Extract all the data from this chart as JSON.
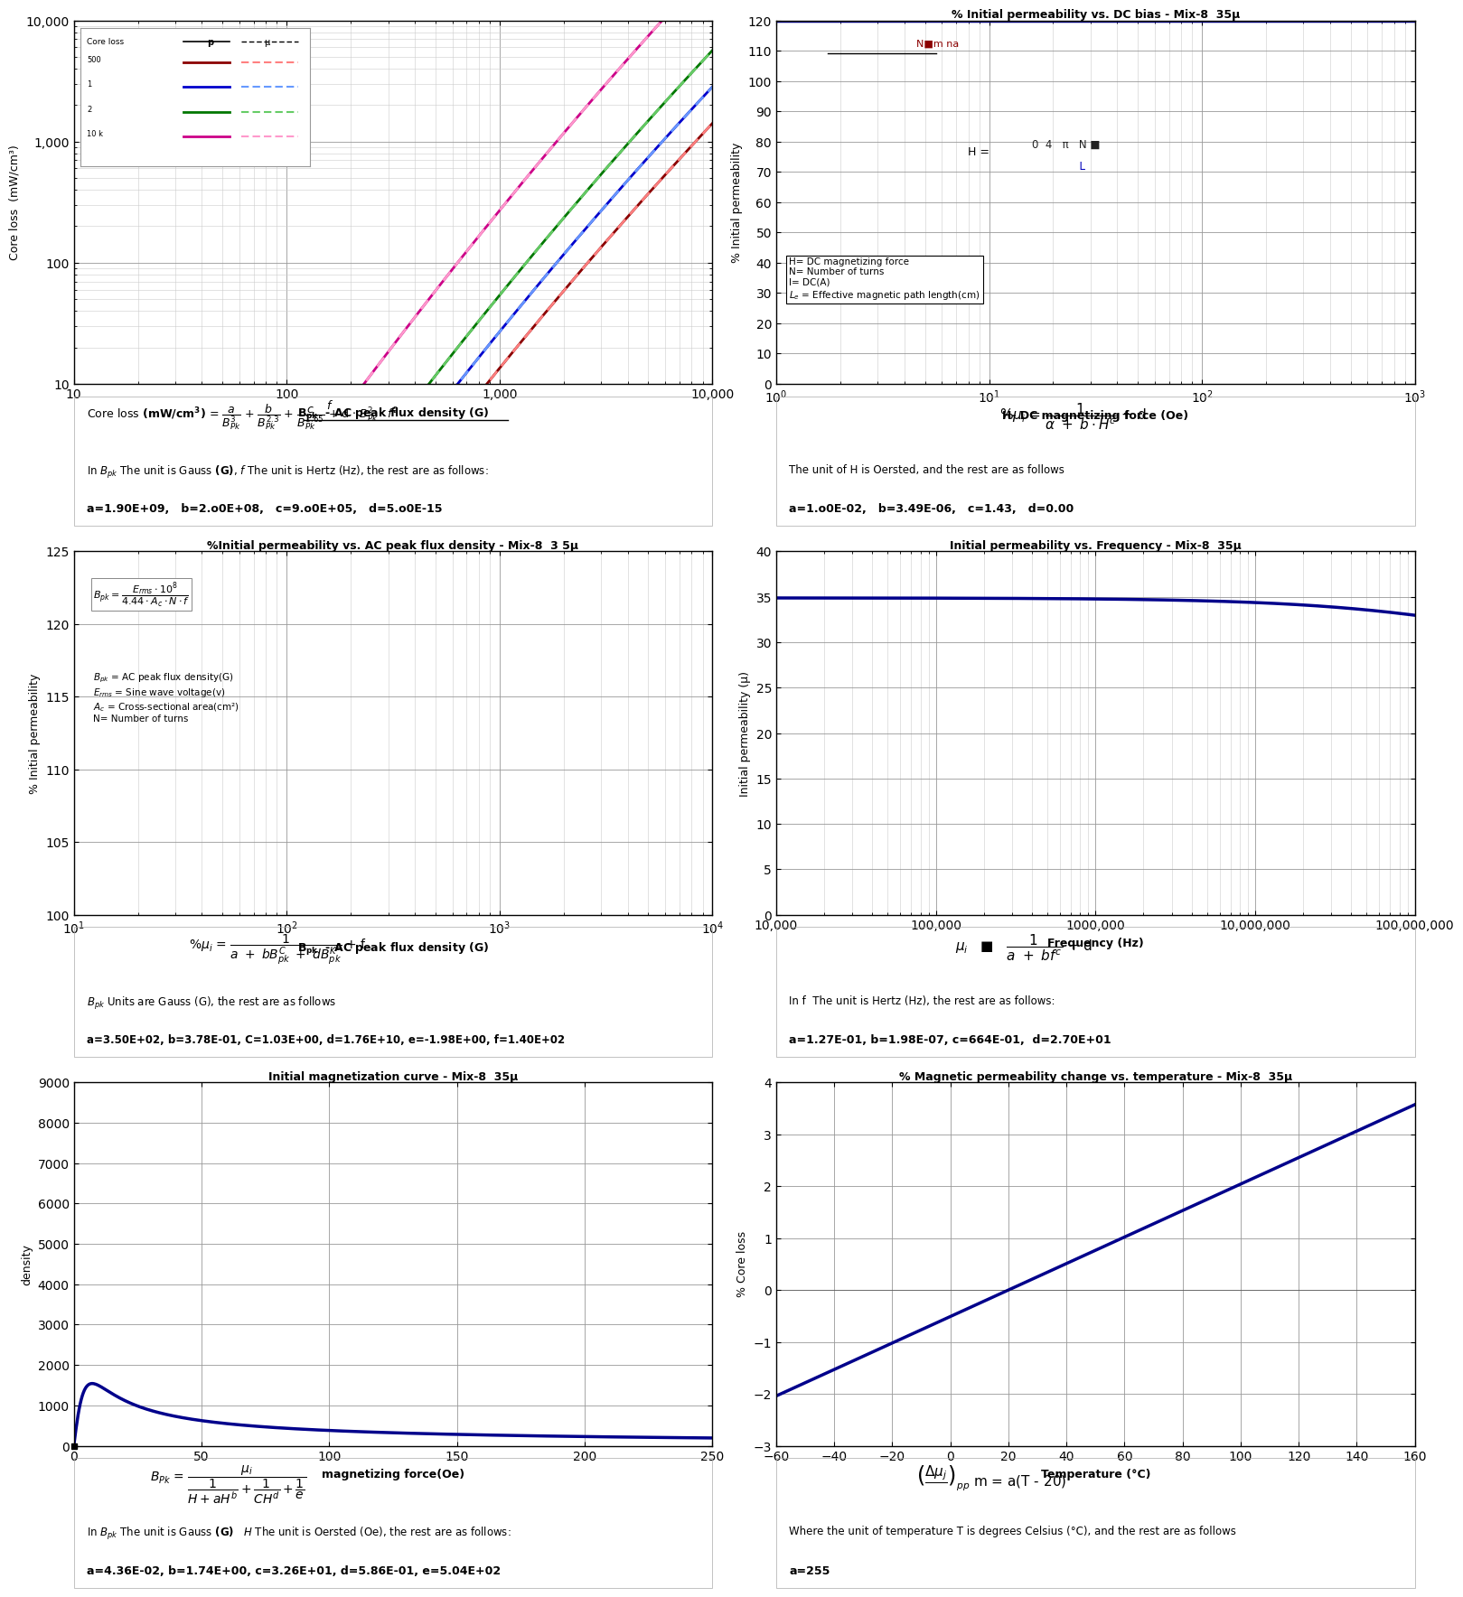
{
  "panel1": {
    "title": "Core loss",
    "xlabel": "B_pk - AC peak flux density (G)",
    "ylabel": "Core loss  (mW/cm3)",
    "xlim": [
      10,
      10000
    ],
    "ylim": [
      10,
      10000
    ],
    "freq_labels": [
      "500",
      "1",
      "2",
      "10 k"
    ],
    "colors_solid": [
      "#8B0000",
      "#0000CC",
      "#007700",
      "#CC0088"
    ],
    "colors_dashed": [
      "#FF8080",
      "#6699FF",
      "#66CC66",
      "#FF99CC"
    ]
  },
  "panel2": {
    "title": "% Initial permeability vs. DC bias - Mix-8  35u",
    "xlabel": "H- DC magnetizing force (Oe)",
    "ylabel": "% Initial permeability",
    "xlim": [
      1,
      1000
    ],
    "ylim": [
      0,
      120
    ],
    "yticks": [
      0,
      10,
      20,
      30,
      40,
      50,
      60,
      70,
      80,
      90,
      100,
      110,
      120
    ],
    "a": 0.01,
    "b": 3.49e-06,
    "c": 1.43,
    "d": 0.0
  },
  "panel3": {
    "title": "%Initial permeability vs. AC peak flux density - Mix-8  3 5u",
    "xlabel": "B_pk - AC peak flux density (G)",
    "ylabel": "% Initial permeability",
    "xlim": [
      10,
      10000
    ],
    "ylim": [
      100,
      125
    ],
    "yticks": [
      100,
      105,
      110,
      115,
      120,
      125
    ],
    "a": 350.0,
    "b": 0.378,
    "C": 1.03,
    "d": 17600000000.0,
    "e": -1.98,
    "f": 140.0
  },
  "panel4": {
    "title": "Initial permeability vs. Frequency - Mix-8  35u",
    "xlabel": "Frequency (Hz)",
    "ylabel": "Initial permeability (u)",
    "xlim": [
      10000,
      100000000
    ],
    "ylim": [
      0,
      40
    ],
    "yticks": [
      0,
      5,
      10,
      15,
      20,
      25,
      30,
      35,
      40
    ],
    "a": 0.127,
    "b": 1.98e-07,
    "c": 0.664,
    "d": 27.0
  },
  "panel5": {
    "title": "Initial magnetization curve - Mix-8  35u",
    "xlabel": "magnetizing force(Oe)",
    "ylabel": "density",
    "xlim": [
      0,
      250
    ],
    "ylim": [
      0,
      9000
    ],
    "yticks": [
      0,
      1000,
      2000,
      3000,
      4000,
      5000,
      6000,
      7000,
      8000,
      9000
    ],
    "xticks": [
      0,
      50,
      100,
      150,
      200,
      250
    ],
    "a": 0.0436,
    "b": 1.74,
    "c": 32.6,
    "d": 0.586,
    "e": 504.0
  },
  "panel6": {
    "title": "% Magnetic permeability change vs. temperature - Mix-8  35u",
    "xlabel": "Temperature (C)",
    "ylabel": "% Core loss",
    "xlim": [
      -60,
      160
    ],
    "ylim": [
      -3,
      4
    ],
    "xticks": [
      -60,
      -40,
      -20,
      0,
      20,
      40,
      60,
      80,
      100,
      120,
      140,
      160
    ],
    "yticks": [
      -3,
      -2,
      -1,
      0,
      1,
      2,
      3,
      4
    ],
    "a": 255
  },
  "line_color": "#00008B",
  "grid_color_minor": "#CCCCCC",
  "grid_color_major": "#888888"
}
